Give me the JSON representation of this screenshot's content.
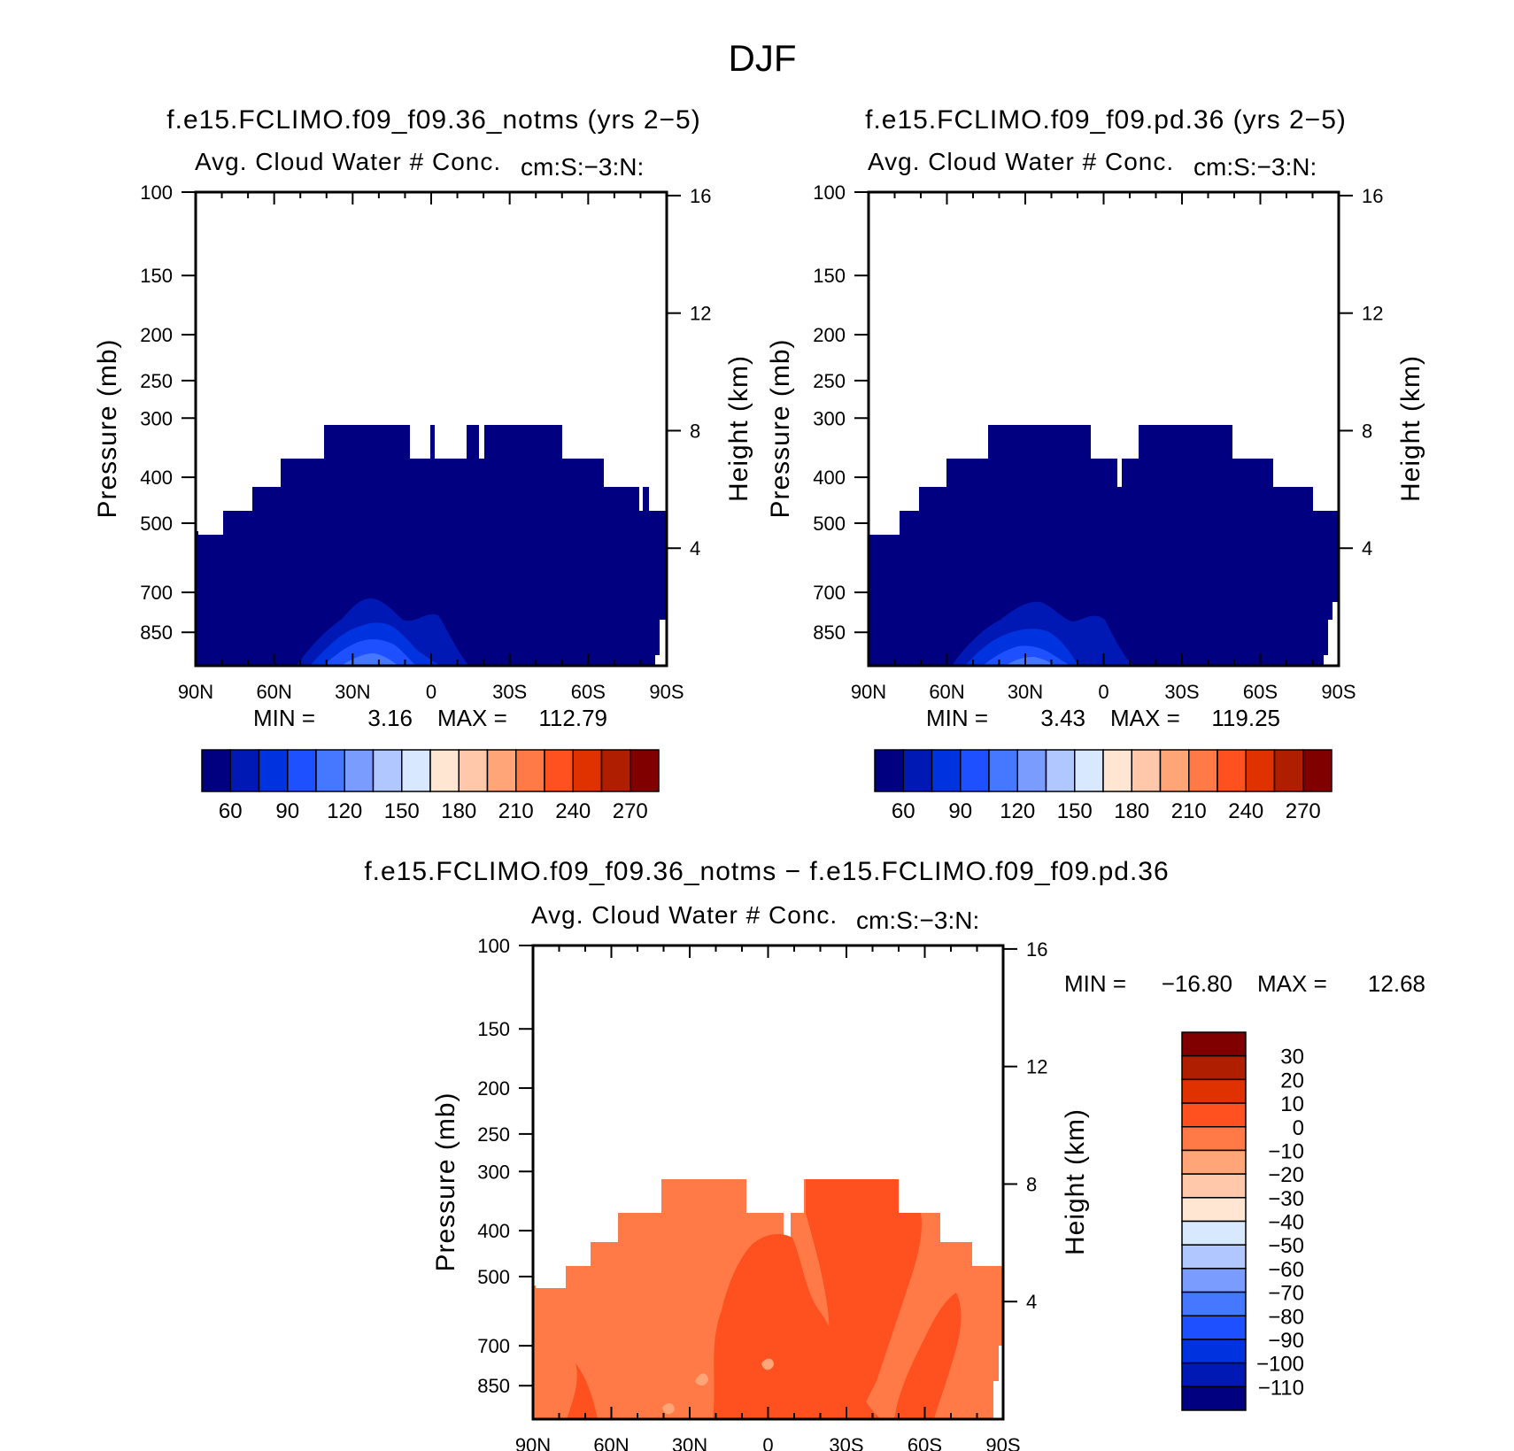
{
  "figure": {
    "title": "DJF"
  },
  "chart_data": [
    {
      "type": "contour",
      "title": "f.e15.FCLIMO.f09_f09.36_notms (yrs 2-5)",
      "subtitle": "Avg. Cloud Water # Conc.",
      "units_label": "cm:S:-3:N:",
      "xlabel": "",
      "ylabel": "Pressure (mb)",
      "ylabel_right": "Height (km)",
      "x_tick_labels": [
        "90N",
        "60N",
        "30N",
        "0",
        "30S",
        "60S",
        "90S"
      ],
      "y_tick_labels": [
        "100",
        "150",
        "200",
        "250",
        "300",
        "400",
        "500",
        "700",
        "850"
      ],
      "y_right_tick_labels": [
        "16",
        "12",
        "8",
        "4"
      ],
      "stats": {
        "min_label": "MIN =",
        "min": "3.16",
        "max_label": "MAX =",
        "max": "112.79"
      },
      "colorbar": {
        "colors": [
          "#000080",
          "#0019b4",
          "#0033e0",
          "#1e50ff",
          "#4678ff",
          "#7a9cff",
          "#b0c8ff",
          "#d8e8ff",
          "#ffe6d2",
          "#ffc8aa",
          "#ffa578",
          "#ff7a46",
          "#ff5020",
          "#e03200",
          "#b01e00",
          "#800000"
        ],
        "labels": [
          "60",
          "90",
          "120",
          "150",
          "180",
          "210",
          "240",
          "270"
        ]
      }
    },
    {
      "type": "contour",
      "title": "f.e15.FCLIMO.f09_f09.pd.36 (yrs 2-5)",
      "subtitle": "Avg. Cloud Water # Conc.",
      "units_label": "cm:S:-3:N:",
      "xlabel": "",
      "ylabel": "Pressure (mb)",
      "ylabel_right": "Height (km)",
      "x_tick_labels": [
        "90N",
        "60N",
        "30N",
        "0",
        "30S",
        "60S",
        "90S"
      ],
      "y_tick_labels": [
        "100",
        "150",
        "200",
        "250",
        "300",
        "400",
        "500",
        "700",
        "850"
      ],
      "y_right_tick_labels": [
        "16",
        "12",
        "8",
        "4"
      ],
      "stats": {
        "min_label": "MIN =",
        "min": "3.43",
        "max_label": "MAX =",
        "max": "119.25"
      },
      "colorbar": {
        "colors": [
          "#000080",
          "#0019b4",
          "#0033e0",
          "#1e50ff",
          "#4678ff",
          "#7a9cff",
          "#b0c8ff",
          "#d8e8ff",
          "#ffe6d2",
          "#ffc8aa",
          "#ffa578",
          "#ff7a46",
          "#ff5020",
          "#e03200",
          "#b01e00",
          "#800000"
        ],
        "labels": [
          "60",
          "90",
          "120",
          "150",
          "180",
          "210",
          "240",
          "270"
        ]
      }
    },
    {
      "type": "contour",
      "title": "f.e15.FCLIMO.f09_f09.36_notms - f.e15.FCLIMO.f09_f09.pd.36",
      "subtitle": "Avg. Cloud Water # Conc.",
      "units_label": "cm:S:-3:N:",
      "xlabel": "",
      "ylabel": "Pressure (mb)",
      "ylabel_right": "Height (km)",
      "x_tick_labels": [
        "90N",
        "60N",
        "30N",
        "0",
        "30S",
        "60S",
        "90S"
      ],
      "y_tick_labels": [
        "100",
        "150",
        "200",
        "250",
        "300",
        "400",
        "500",
        "700",
        "850"
      ],
      "y_right_tick_labels": [
        "16",
        "12",
        "8",
        "4"
      ],
      "stats": {
        "min_label": "MIN =",
        "min": "-16.80",
        "max_label": "MAX =",
        "max": "12.68"
      },
      "colorbar": {
        "colors": [
          "#800000",
          "#b01e00",
          "#e03200",
          "#ff5020",
          "#ff7a46",
          "#ffa578",
          "#ffc8aa",
          "#ffe6d2",
          "#d8e8ff",
          "#b0c8ff",
          "#7a9cff",
          "#4678ff",
          "#1e50ff",
          "#0033e0",
          "#0019b4",
          "#000080"
        ],
        "labels": [
          "30",
          "20",
          "10",
          "0",
          "-10",
          "-20",
          "-30",
          "-40",
          "-50",
          "-60",
          "-70",
          "-80",
          "-90",
          "-100",
          "-110"
        ]
      }
    }
  ]
}
